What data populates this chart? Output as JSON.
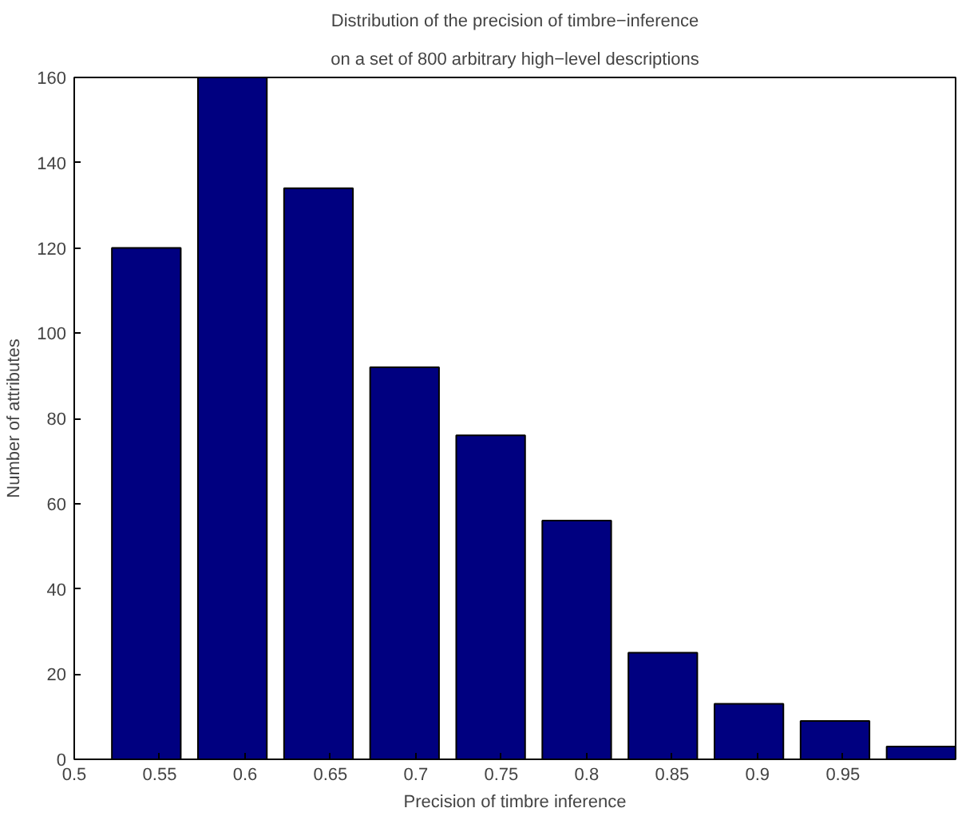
{
  "chart_data": {
    "type": "histogram",
    "title": "Distribution of the precision of timbre−inference",
    "subtitle": "on a set of 800 arbitrary high−level descriptions",
    "xlabel": "Precision of timbre inference",
    "ylabel": "Number of attributes",
    "bins": [
      0.517,
      0.5674,
      0.6178,
      0.6682,
      0.7186,
      0.769,
      0.8194,
      0.8698,
      0.9202,
      0.9706,
      1.021
    ],
    "values": [
      120,
      160,
      134,
      92,
      76,
      56,
      25,
      13,
      9,
      3
    ],
    "color": "#000080",
    "xlim": [
      0.5,
      1.016
    ],
    "xticks": [
      0.5,
      0.55,
      0.6,
      0.65,
      0.7,
      0.75,
      0.8,
      0.85,
      0.9,
      0.95
    ],
    "ylim": [
      0,
      160
    ],
    "yticks": [
      0,
      20,
      40,
      60,
      80,
      100,
      120,
      140,
      160
    ],
    "grid": false
  }
}
